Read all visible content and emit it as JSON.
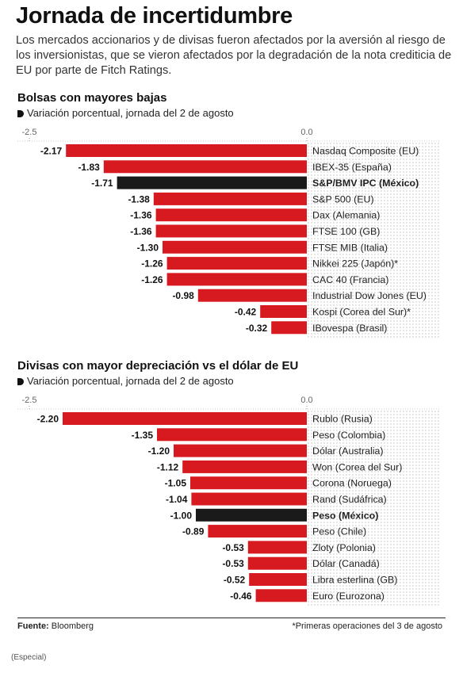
{
  "header": {
    "title": "Jornada de incertidumbre",
    "subtitle": "Los mercados accionarios y de divisas fueron afectados por la aversión al riesgo de los inversionistas, que se vieron afectados por la degradación de la nota crediticia de EU por parte de Fitch Ratings."
  },
  "colors": {
    "bar": "#d71920",
    "highlight": "#1a1a1a",
    "dots": "#bdbdbd"
  },
  "chart_data": [
    {
      "type": "bar",
      "title": "Bolsas con mayores bajas",
      "subtitle": "Variación porcentual, jornada del 2 de agosto",
      "xlim": [
        -2.5,
        0.0
      ],
      "tick_labels": [
        "-2.5",
        "0.0"
      ],
      "highlight": "S&P/BMV IPC (México)",
      "categories": [
        "Nasdaq Composite (EU)",
        "IBEX-35 (España)",
        "S&P/BMV IPC (México)",
        "S&P 500 (EU)",
        "Dax (Alemania)",
        "FTSE 100 (GB)",
        "FTSE MIB (Italia)",
        "Nikkei 225 (Japón)*",
        "CAC 40 (Francia)",
        "Industrial Dow Jones (EU)",
        "Kospi (Corea del Sur)*",
        "IBovespa (Brasil)"
      ],
      "values": [
        -2.17,
        -1.83,
        -1.71,
        -1.38,
        -1.36,
        -1.36,
        -1.3,
        -1.26,
        -1.26,
        -0.98,
        -0.42,
        -0.32
      ],
      "value_labels": [
        "-2.17",
        "-1.83",
        "-1.71",
        "-1.38",
        "-1.36",
        "-1.36",
        "-1.30",
        "-1.26",
        "-1.26",
        "-0.98",
        "-0.42",
        "-0.32"
      ]
    },
    {
      "type": "bar",
      "title": "Divisas con mayor depreciación vs el dólar de EU",
      "subtitle": "Variación porcentual, jornada del 2 de agosto",
      "xlim": [
        -2.5,
        0.0
      ],
      "tick_labels": [
        "-2.5",
        "0.0"
      ],
      "highlight": "Peso (México)",
      "categories": [
        "Rublo (Rusia)",
        "Peso (Colombia)",
        "Dólar (Australia)",
        "Won (Corea del Sur)",
        "Corona (Noruega)",
        "Rand (Sudáfrica)",
        "Peso (México)",
        "Peso (Chile)",
        "Zloty (Polonia)",
        "Dólar (Canadá)",
        "Libra esterlina (GB)",
        "Euro (Eurozona)"
      ],
      "values": [
        -2.2,
        -1.35,
        -1.2,
        -1.12,
        -1.05,
        -1.04,
        -1.0,
        -0.89,
        -0.53,
        -0.53,
        -0.52,
        -0.46
      ],
      "value_labels": [
        "-2.20",
        "-1.35",
        "-1.20",
        "-1.12",
        "-1.05",
        "-1.04",
        "-1.00",
        "-0.89",
        "-0.53",
        "-0.53",
        "-0.52",
        "-0.46"
      ]
    }
  ],
  "footer": {
    "source_label": "Fuente:",
    "source_value": "Bloomberg",
    "footnote": "*Primeras operaciones del 3 de agosto",
    "credit": "(Especial)"
  }
}
